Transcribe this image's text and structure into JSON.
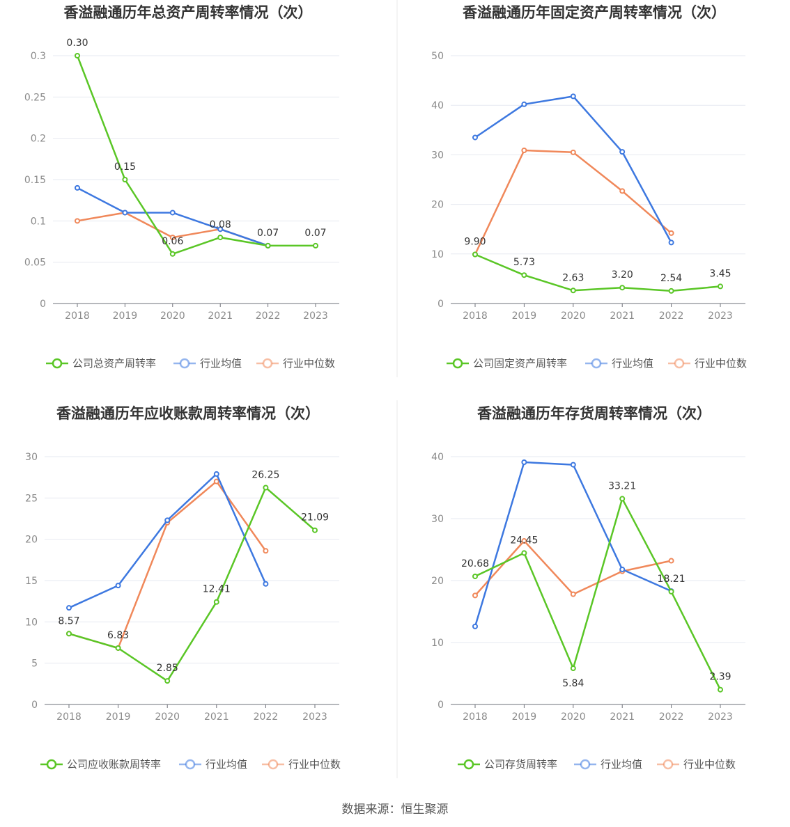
{
  "source_text": "数据来源：恒生聚源",
  "colors": {
    "company": "#5ac626",
    "mean": "#3d78e0",
    "median": "#f0885a"
  },
  "chart_data": [
    {
      "type": "line",
      "title": "香溢融通历年总资产周转率情况（次）",
      "categories": [
        "2018",
        "2019",
        "2020",
        "2021",
        "2022",
        "2023"
      ],
      "ylim": [
        0,
        0.3
      ],
      "yticks": [
        "0",
        "0.05",
        "0.1",
        "0.15",
        "0.2",
        "0.25",
        "0.3"
      ],
      "ytick_values": [
        0,
        0.05,
        0.1,
        0.15,
        0.2,
        0.25,
        0.3
      ],
      "series": [
        {
          "name": "公司总资产周转率",
          "key": "company",
          "values": [
            0.3,
            0.15,
            0.06,
            0.08,
            0.07,
            0.07
          ],
          "labels": [
            "0.30",
            "0.15",
            "0.06",
            "0.08",
            "0.07",
            "0.07"
          ]
        },
        {
          "name": "行业均值",
          "key": "mean",
          "values": [
            0.14,
            0.11,
            0.11,
            0.09,
            0.07,
            null
          ]
        },
        {
          "name": "行业中位数",
          "key": "median",
          "values": [
            0.1,
            0.11,
            0.08,
            0.09,
            0.07,
            null
          ]
        }
      ],
      "legend": "bottom"
    },
    {
      "type": "line",
      "title": "香溢融通历年固定资产周转率情况（次）",
      "categories": [
        "2018",
        "2019",
        "2020",
        "2021",
        "2022",
        "2023"
      ],
      "ylim": [
        0,
        50
      ],
      "yticks": [
        "0",
        "10",
        "20",
        "30",
        "40",
        "50"
      ],
      "ytick_values": [
        0,
        10,
        20,
        30,
        40,
        50
      ],
      "series": [
        {
          "name": "公司固定资产周转率",
          "key": "company",
          "values": [
            9.9,
            5.73,
            2.63,
            3.2,
            2.54,
            3.45
          ],
          "labels": [
            "9.90",
            "5.73",
            "2.63",
            "3.20",
            "2.54",
            "3.45"
          ]
        },
        {
          "name": "行业均值",
          "key": "mean",
          "values": [
            33.5,
            40.2,
            41.8,
            30.6,
            12.3,
            null
          ]
        },
        {
          "name": "行业中位数",
          "key": "median",
          "values": [
            9.9,
            30.9,
            30.5,
            22.7,
            14.2,
            null
          ]
        }
      ],
      "legend": "bottom"
    },
    {
      "type": "line",
      "title": "香溢融通历年应收账款周转率情况（次）",
      "categories": [
        "2018",
        "2019",
        "2020",
        "2021",
        "2022",
        "2023"
      ],
      "ylim": [
        0,
        30
      ],
      "yticks": [
        "0",
        "5",
        "10",
        "15",
        "20",
        "25",
        "30"
      ],
      "ytick_values": [
        0,
        5,
        10,
        15,
        20,
        25,
        30
      ],
      "series": [
        {
          "name": "公司应收账款周转率",
          "key": "company",
          "values": [
            8.57,
            6.83,
            2.85,
            12.41,
            26.25,
            21.09
          ],
          "labels": [
            "8.57",
            "6.83",
            "2.85",
            "12.41",
            "26.25",
            "21.09"
          ]
        },
        {
          "name": "行业均值",
          "key": "mean",
          "values": [
            11.7,
            14.4,
            22.3,
            27.9,
            14.6,
            null
          ]
        },
        {
          "name": "行业中位数",
          "key": "median",
          "values": [
            8.57,
            6.83,
            22.0,
            27.0,
            18.6,
            null
          ]
        }
      ],
      "legend": "bottom"
    },
    {
      "type": "line",
      "title": "香溢融通历年存货周转率情况（次）",
      "categories": [
        "2018",
        "2019",
        "2020",
        "2021",
        "2022",
        "2023"
      ],
      "ylim": [
        0,
        40
      ],
      "yticks": [
        "0",
        "10",
        "20",
        "30",
        "40"
      ],
      "ytick_values": [
        0,
        10,
        20,
        30,
        40
      ],
      "series": [
        {
          "name": "公司存货周转率",
          "key": "company",
          "values": [
            20.68,
            24.45,
            5.84,
            33.21,
            18.21,
            2.39
          ],
          "labels": [
            "20.68",
            "24.45",
            "5.84",
            "33.21",
            "18.21",
            "2.39"
          ]
        },
        {
          "name": "行业均值",
          "key": "mean",
          "values": [
            12.6,
            39.1,
            38.7,
            21.8,
            18.3,
            null
          ]
        },
        {
          "name": "行业中位数",
          "key": "median",
          "values": [
            17.6,
            26.4,
            17.8,
            21.5,
            23.2,
            null
          ]
        }
      ],
      "legend": "bottom"
    }
  ]
}
